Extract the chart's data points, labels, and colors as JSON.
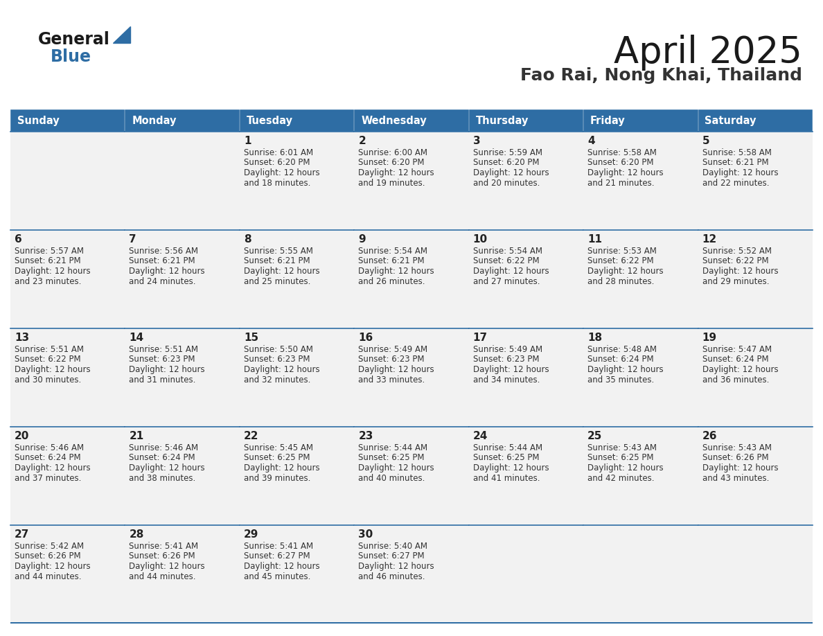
{
  "title": "April 2025",
  "subtitle": "Fao Rai, Nong Khai, Thailand",
  "header_color": "#2E6DA4",
  "header_text_color": "#FFFFFF",
  "border_color": "#2E6DA4",
  "text_color": "#333333",
  "day_num_color": "#222222",
  "cell_bg_filled": "#F0F0F0",
  "cell_bg_empty": "#F0F0F0",
  "days_of_week": [
    "Sunday",
    "Monday",
    "Tuesday",
    "Wednesday",
    "Thursday",
    "Friday",
    "Saturday"
  ],
  "calendar_data": [
    [
      {
        "day": "",
        "sunrise": "",
        "sunset": "",
        "daylight_line1": "",
        "daylight_line2": ""
      },
      {
        "day": "",
        "sunrise": "",
        "sunset": "",
        "daylight_line1": "",
        "daylight_line2": ""
      },
      {
        "day": "1",
        "sunrise": "Sunrise: 6:01 AM",
        "sunset": "Sunset: 6:20 PM",
        "daylight_line1": "Daylight: 12 hours",
        "daylight_line2": "and 18 minutes."
      },
      {
        "day": "2",
        "sunrise": "Sunrise: 6:00 AM",
        "sunset": "Sunset: 6:20 PM",
        "daylight_line1": "Daylight: 12 hours",
        "daylight_line2": "and 19 minutes."
      },
      {
        "day": "3",
        "sunrise": "Sunrise: 5:59 AM",
        "sunset": "Sunset: 6:20 PM",
        "daylight_line1": "Daylight: 12 hours",
        "daylight_line2": "and 20 minutes."
      },
      {
        "day": "4",
        "sunrise": "Sunrise: 5:58 AM",
        "sunset": "Sunset: 6:20 PM",
        "daylight_line1": "Daylight: 12 hours",
        "daylight_line2": "and 21 minutes."
      },
      {
        "day": "5",
        "sunrise": "Sunrise: 5:58 AM",
        "sunset": "Sunset: 6:21 PM",
        "daylight_line1": "Daylight: 12 hours",
        "daylight_line2": "and 22 minutes."
      }
    ],
    [
      {
        "day": "6",
        "sunrise": "Sunrise: 5:57 AM",
        "sunset": "Sunset: 6:21 PM",
        "daylight_line1": "Daylight: 12 hours",
        "daylight_line2": "and 23 minutes."
      },
      {
        "day": "7",
        "sunrise": "Sunrise: 5:56 AM",
        "sunset": "Sunset: 6:21 PM",
        "daylight_line1": "Daylight: 12 hours",
        "daylight_line2": "and 24 minutes."
      },
      {
        "day": "8",
        "sunrise": "Sunrise: 5:55 AM",
        "sunset": "Sunset: 6:21 PM",
        "daylight_line1": "Daylight: 12 hours",
        "daylight_line2": "and 25 minutes."
      },
      {
        "day": "9",
        "sunrise": "Sunrise: 5:54 AM",
        "sunset": "Sunset: 6:21 PM",
        "daylight_line1": "Daylight: 12 hours",
        "daylight_line2": "and 26 minutes."
      },
      {
        "day": "10",
        "sunrise": "Sunrise: 5:54 AM",
        "sunset": "Sunset: 6:22 PM",
        "daylight_line1": "Daylight: 12 hours",
        "daylight_line2": "and 27 minutes."
      },
      {
        "day": "11",
        "sunrise": "Sunrise: 5:53 AM",
        "sunset": "Sunset: 6:22 PM",
        "daylight_line1": "Daylight: 12 hours",
        "daylight_line2": "and 28 minutes."
      },
      {
        "day": "12",
        "sunrise": "Sunrise: 5:52 AM",
        "sunset": "Sunset: 6:22 PM",
        "daylight_line1": "Daylight: 12 hours",
        "daylight_line2": "and 29 minutes."
      }
    ],
    [
      {
        "day": "13",
        "sunrise": "Sunrise: 5:51 AM",
        "sunset": "Sunset: 6:22 PM",
        "daylight_line1": "Daylight: 12 hours",
        "daylight_line2": "and 30 minutes."
      },
      {
        "day": "14",
        "sunrise": "Sunrise: 5:51 AM",
        "sunset": "Sunset: 6:23 PM",
        "daylight_line1": "Daylight: 12 hours",
        "daylight_line2": "and 31 minutes."
      },
      {
        "day": "15",
        "sunrise": "Sunrise: 5:50 AM",
        "sunset": "Sunset: 6:23 PM",
        "daylight_line1": "Daylight: 12 hours",
        "daylight_line2": "and 32 minutes."
      },
      {
        "day": "16",
        "sunrise": "Sunrise: 5:49 AM",
        "sunset": "Sunset: 6:23 PM",
        "daylight_line1": "Daylight: 12 hours",
        "daylight_line2": "and 33 minutes."
      },
      {
        "day": "17",
        "sunrise": "Sunrise: 5:49 AM",
        "sunset": "Sunset: 6:23 PM",
        "daylight_line1": "Daylight: 12 hours",
        "daylight_line2": "and 34 minutes."
      },
      {
        "day": "18",
        "sunrise": "Sunrise: 5:48 AM",
        "sunset": "Sunset: 6:24 PM",
        "daylight_line1": "Daylight: 12 hours",
        "daylight_line2": "and 35 minutes."
      },
      {
        "day": "19",
        "sunrise": "Sunrise: 5:47 AM",
        "sunset": "Sunset: 6:24 PM",
        "daylight_line1": "Daylight: 12 hours",
        "daylight_line2": "and 36 minutes."
      }
    ],
    [
      {
        "day": "20",
        "sunrise": "Sunrise: 5:46 AM",
        "sunset": "Sunset: 6:24 PM",
        "daylight_line1": "Daylight: 12 hours",
        "daylight_line2": "and 37 minutes."
      },
      {
        "day": "21",
        "sunrise": "Sunrise: 5:46 AM",
        "sunset": "Sunset: 6:24 PM",
        "daylight_line1": "Daylight: 12 hours",
        "daylight_line2": "and 38 minutes."
      },
      {
        "day": "22",
        "sunrise": "Sunrise: 5:45 AM",
        "sunset": "Sunset: 6:25 PM",
        "daylight_line1": "Daylight: 12 hours",
        "daylight_line2": "and 39 minutes."
      },
      {
        "day": "23",
        "sunrise": "Sunrise: 5:44 AM",
        "sunset": "Sunset: 6:25 PM",
        "daylight_line1": "Daylight: 12 hours",
        "daylight_line2": "and 40 minutes."
      },
      {
        "day": "24",
        "sunrise": "Sunrise: 5:44 AM",
        "sunset": "Sunset: 6:25 PM",
        "daylight_line1": "Daylight: 12 hours",
        "daylight_line2": "and 41 minutes."
      },
      {
        "day": "25",
        "sunrise": "Sunrise: 5:43 AM",
        "sunset": "Sunset: 6:25 PM",
        "daylight_line1": "Daylight: 12 hours",
        "daylight_line2": "and 42 minutes."
      },
      {
        "day": "26",
        "sunrise": "Sunrise: 5:43 AM",
        "sunset": "Sunset: 6:26 PM",
        "daylight_line1": "Daylight: 12 hours",
        "daylight_line2": "and 43 minutes."
      }
    ],
    [
      {
        "day": "27",
        "sunrise": "Sunrise: 5:42 AM",
        "sunset": "Sunset: 6:26 PM",
        "daylight_line1": "Daylight: 12 hours",
        "daylight_line2": "and 44 minutes."
      },
      {
        "day": "28",
        "sunrise": "Sunrise: 5:41 AM",
        "sunset": "Sunset: 6:26 PM",
        "daylight_line1": "Daylight: 12 hours",
        "daylight_line2": "and 44 minutes."
      },
      {
        "day": "29",
        "sunrise": "Sunrise: 5:41 AM",
        "sunset": "Sunset: 6:27 PM",
        "daylight_line1": "Daylight: 12 hours",
        "daylight_line2": "and 45 minutes."
      },
      {
        "day": "30",
        "sunrise": "Sunrise: 5:40 AM",
        "sunset": "Sunset: 6:27 PM",
        "daylight_line1": "Daylight: 12 hours",
        "daylight_line2": "and 46 minutes."
      },
      {
        "day": "",
        "sunrise": "",
        "sunset": "",
        "daylight_line1": "",
        "daylight_line2": ""
      },
      {
        "day": "",
        "sunrise": "",
        "sunset": "",
        "daylight_line1": "",
        "daylight_line2": ""
      },
      {
        "day": "",
        "sunrise": "",
        "sunset": "",
        "daylight_line1": "",
        "daylight_line2": ""
      }
    ]
  ],
  "logo_color_general": "#1a1a1a",
  "logo_color_blue": "#2E6DA4",
  "logo_triangle_color": "#2E6DA4",
  "title_fontsize": 38,
  "subtitle_fontsize": 18,
  "header_fontsize": 10.5,
  "day_num_fontsize": 11,
  "cell_text_fontsize": 8.5
}
